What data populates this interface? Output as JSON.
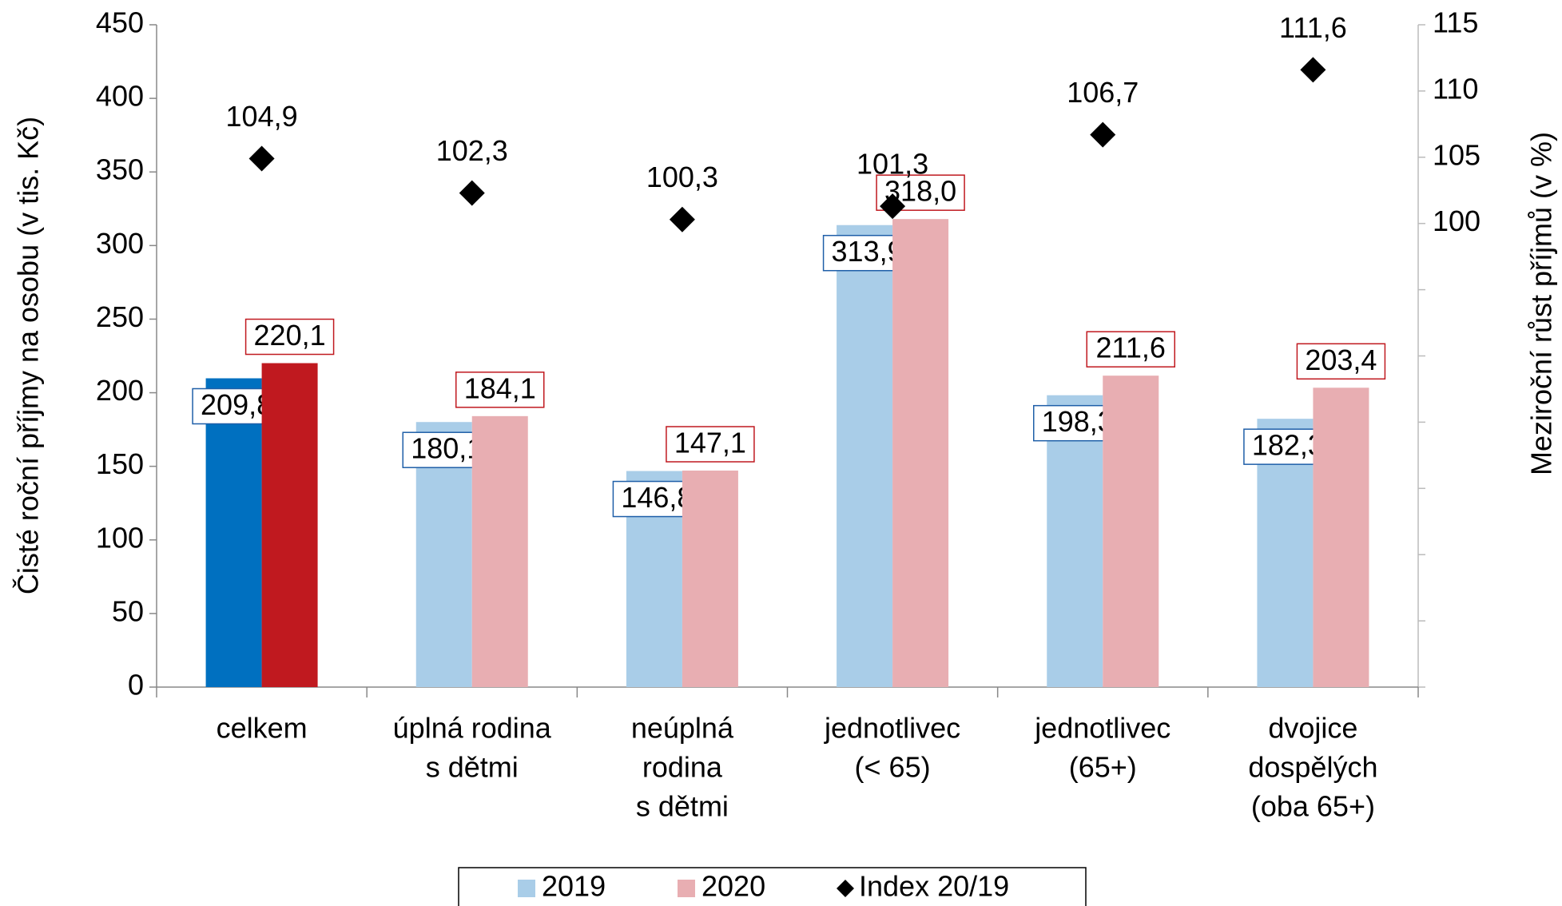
{
  "chart_data": {
    "type": "bar",
    "ylabel": "Čisté roční příjmy na osobu (v tis. Kč)",
    "y2label": "Meziroční růst příjmů (v %)",
    "categories": [
      [
        "celkem"
      ],
      [
        "úplná rodina",
        "s dětmi"
      ],
      [
        "neúplná",
        "rodina",
        "s dětmi"
      ],
      [
        "jednotlivec",
        "(< 65)"
      ],
      [
        "jednotlivec",
        "(65+)"
      ],
      [
        "dvojice",
        "dospělých",
        "(oba 65+)"
      ]
    ],
    "series": [
      {
        "name": "2019",
        "type": "bar",
        "color": "#a9cde8",
        "colors": [
          "#0070c0",
          "#a9cde8",
          "#a9cde8",
          "#a9cde8",
          "#a9cde8",
          "#a9cde8"
        ],
        "label_border": "#1f5fa8",
        "values": [
          209.8,
          180.1,
          146.8,
          313.9,
          198.3,
          182.3
        ],
        "value_labels": [
          "209,8",
          "180,1",
          "146,8",
          "313,9",
          "198,3",
          "182,3"
        ]
      },
      {
        "name": "2020",
        "type": "bar",
        "color": "#e8aeb2",
        "colors": [
          "#c0191f",
          "#e8aeb2",
          "#e8aeb2",
          "#e8aeb2",
          "#e8aeb2",
          "#e8aeb2"
        ],
        "label_border": "#c0191f",
        "values": [
          220.1,
          184.1,
          147.1,
          318.0,
          211.6,
          203.4
        ],
        "value_labels": [
          "220,1",
          "184,1",
          "147,1",
          "318,0",
          "211,6",
          "203,4"
        ]
      },
      {
        "name": "Index 20/19",
        "type": "scatter",
        "axis": "y2",
        "color": "#000000",
        "values": [
          104.9,
          102.3,
          100.3,
          101.3,
          106.7,
          111.6
        ],
        "value_labels": [
          "104,9",
          "102,3",
          "100,3",
          "101,3",
          "106,7",
          "111,6"
        ]
      }
    ],
    "ylim": [
      0,
      450
    ],
    "yticks": [
      0,
      50,
      100,
      150,
      200,
      250,
      300,
      350,
      400,
      450
    ],
    "y2lim": [
      65,
      115
    ],
    "y2ticks": [
      {
        "value": 65,
        "label": null
      },
      {
        "value": 70,
        "label": null
      },
      {
        "value": 75,
        "label": null
      },
      {
        "value": 80,
        "label": null
      },
      {
        "value": 85,
        "label": null
      },
      {
        "value": 90,
        "label": null
      },
      {
        "value": 95,
        "label": null
      },
      100,
      105,
      110,
      115
    ],
    "grid": false,
    "legend": "bottom"
  }
}
